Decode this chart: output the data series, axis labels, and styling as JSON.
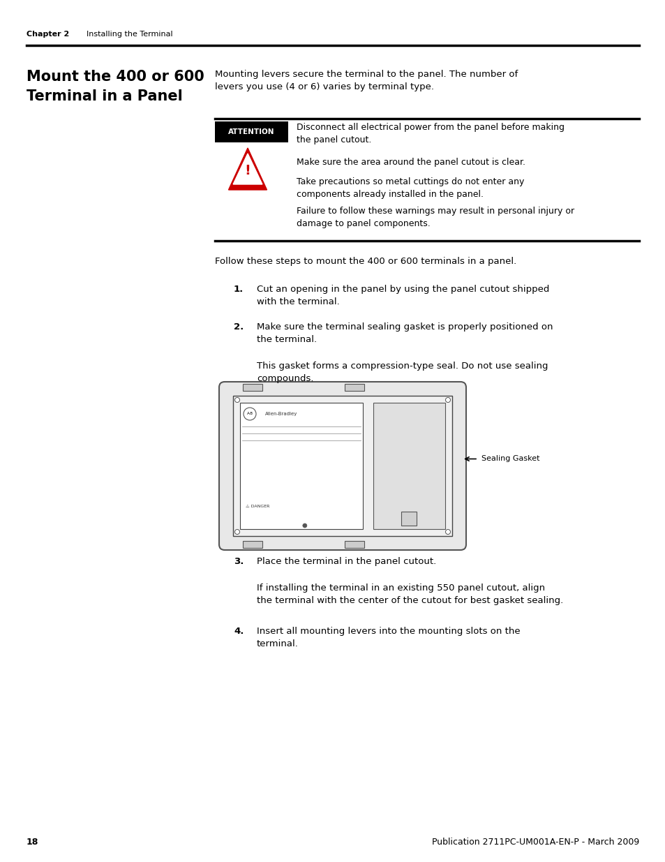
{
  "bg_color": "#ffffff",
  "header_chapter": "Chapter 2",
  "header_subtitle": "    Installing the Terminal",
  "section_title_line1": "Mount the 400 or 600",
  "section_title_line2": "Terminal in a Panel",
  "intro_text": "Mounting levers secure the terminal to the panel. The number of\nlevers you use (4 or 6) varies by terminal type.",
  "attention_label": "ATTENTION",
  "attention_line1": "Disconnect all electrical power from the panel before making\nthe panel cutout.",
  "attention_line2": "Make sure the area around the panel cutout is clear.",
  "attention_line3": "Take precautions so metal cuttings do not enter any\ncomponents already installed in the panel.",
  "attention_line4": "Failure to follow these warnings may result in personal injury or\ndamage to panel components.",
  "follow_text": "Follow these steps to mount the 400 or 600 terminals in a panel.",
  "step1_text": "Cut an opening in the panel by using the panel cutout shipped\nwith the terminal.",
  "step2_text": "Make sure the terminal sealing gasket is properly positioned on\nthe terminal.",
  "gasket_note": "This gasket forms a compression-type seal. Do not use sealing\ncompounds.",
  "sealing_gasket_label": "Sealing Gasket",
  "step3_text": "Place the terminal in the panel cutout.",
  "step3_note": "If installing the terminal in an existing 550 panel cutout, align\nthe terminal with the center of the cutout for best gasket sealing.",
  "step4_text": "Insert all mounting levers into the mounting slots on the\nterminal.",
  "footer_page": "18",
  "footer_pub": "Publication 2711PC-UM001A-EN-P - March 2009"
}
